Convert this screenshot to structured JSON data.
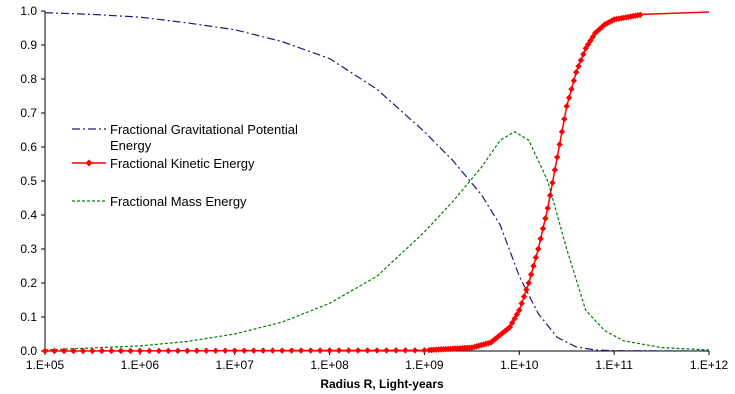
{
  "chart_data": {
    "type": "line",
    "title": "",
    "xlabel": "Radius R, Light-years",
    "ylabel": "",
    "x_scale": "log",
    "xlim": [
      100000,
      1000000000000
    ],
    "ylim": [
      0,
      1
    ],
    "x_ticks": [
      "1.E+05",
      "1.E+06",
      "1.E+07",
      "1.E+08",
      "1.E+09",
      "1.E+10",
      "1.E+11",
      "1.E+12"
    ],
    "y_ticks": [
      "0.0",
      "0.1",
      "0.2",
      "0.3",
      "0.4",
      "0.5",
      "0.6",
      "0.7",
      "0.8",
      "0.9",
      "1.0"
    ],
    "grid": false,
    "legend_position": "middle-left",
    "series": [
      {
        "name": "Fractional Gravitational Potential Energy",
        "line_label": "Fractional Gravitational Potential",
        "line_label_cont": "Energy",
        "color": "#1a1a7a",
        "style": "dashdot",
        "points": [
          {
            "x": 100000,
            "y": 0.995
          },
          {
            "x": 316228,
            "y": 0.99
          },
          {
            "x": 1000000,
            "y": 0.982
          },
          {
            "x": 3162278,
            "y": 0.965
          },
          {
            "x": 10000000,
            "y": 0.945
          },
          {
            "x": 31622777,
            "y": 0.91
          },
          {
            "x": 100000000,
            "y": 0.86
          },
          {
            "x": 316227766,
            "y": 0.77
          },
          {
            "x": 1000000000,
            "y": 0.645
          },
          {
            "x": 1995262315,
            "y": 0.56
          },
          {
            "x": 3981071706,
            "y": 0.46
          },
          {
            "x": 6309573445,
            "y": 0.37
          },
          {
            "x": 10000000000,
            "y": 0.22
          },
          {
            "x": 15848931925,
            "y": 0.11
          },
          {
            "x": 25118864315,
            "y": 0.04
          },
          {
            "x": 39810717055,
            "y": 0.012
          },
          {
            "x": 63095734448,
            "y": 0.003
          },
          {
            "x": 100000000000,
            "y": 0.001
          },
          {
            "x": 1000000000000,
            "y": 0.0
          }
        ]
      },
      {
        "name": "Fractional Kinetic Energy",
        "color": "#ff0000",
        "style": "solid-diamond",
        "points": [
          {
            "x": 100000,
            "y": 0.0
          },
          {
            "x": 1000000000,
            "y": 0.002
          },
          {
            "x": 3162277660,
            "y": 0.01
          },
          {
            "x": 5011872336,
            "y": 0.025
          },
          {
            "x": 7943282347,
            "y": 0.07
          },
          {
            "x": 10000000000,
            "y": 0.12
          },
          {
            "x": 12589254118,
            "y": 0.2
          },
          {
            "x": 15848931925,
            "y": 0.3
          },
          {
            "x": 19952623150,
            "y": 0.42
          },
          {
            "x": 25118864315,
            "y": 0.57
          },
          {
            "x": 31622776602,
            "y": 0.72
          },
          {
            "x": 39810717055,
            "y": 0.82
          },
          {
            "x": 50118723363,
            "y": 0.89
          },
          {
            "x": 63095734448,
            "y": 0.935
          },
          {
            "x": 79432823472,
            "y": 0.96
          },
          {
            "x": 100000000000,
            "y": 0.975
          },
          {
            "x": 199526231497,
            "y": 0.99
          },
          {
            "x": 1000000000000,
            "y": 0.997
          }
        ]
      },
      {
        "name": "Fractional Mass Energy",
        "color": "#008000",
        "style": "dashed",
        "points": [
          {
            "x": 100000,
            "y": 0.003
          },
          {
            "x": 1000000,
            "y": 0.015
          },
          {
            "x": 3162278,
            "y": 0.028
          },
          {
            "x": 10000000,
            "y": 0.05
          },
          {
            "x": 31622777,
            "y": 0.085
          },
          {
            "x": 100000000,
            "y": 0.14
          },
          {
            "x": 316227766,
            "y": 0.22
          },
          {
            "x": 1000000000,
            "y": 0.35
          },
          {
            "x": 1995262315,
            "y": 0.44
          },
          {
            "x": 3981071706,
            "y": 0.54
          },
          {
            "x": 6309573445,
            "y": 0.62
          },
          {
            "x": 8912509381,
            "y": 0.645
          },
          {
            "x": 12589254118,
            "y": 0.62
          },
          {
            "x": 19952623150,
            "y": 0.5
          },
          {
            "x": 31622776602,
            "y": 0.3
          },
          {
            "x": 50118723363,
            "y": 0.12
          },
          {
            "x": 79432823472,
            "y": 0.06
          },
          {
            "x": 125892541179,
            "y": 0.03
          },
          {
            "x": 316227766017,
            "y": 0.01
          },
          {
            "x": 1000000000000,
            "y": 0.003
          }
        ]
      }
    ],
    "marker_positions_kinetic": [
      100000,
      125893,
      158489,
      199526,
      251189,
      316228,
      398107,
      501187,
      630957,
      794328,
      1000000,
      1258925,
      1584893,
      1995262,
      2511886,
      3162278,
      3981072,
      5011872,
      6309573,
      7943282,
      10000000,
      12589254,
      15848932,
      19952623,
      25118864,
      31622777,
      39810717,
      50118723,
      63095734,
      79432823,
      100000000,
      125892541,
      158489319,
      199526231,
      251188643,
      316227766,
      398107171,
      501187234,
      630957344,
      794328235,
      1000000000
    ]
  }
}
